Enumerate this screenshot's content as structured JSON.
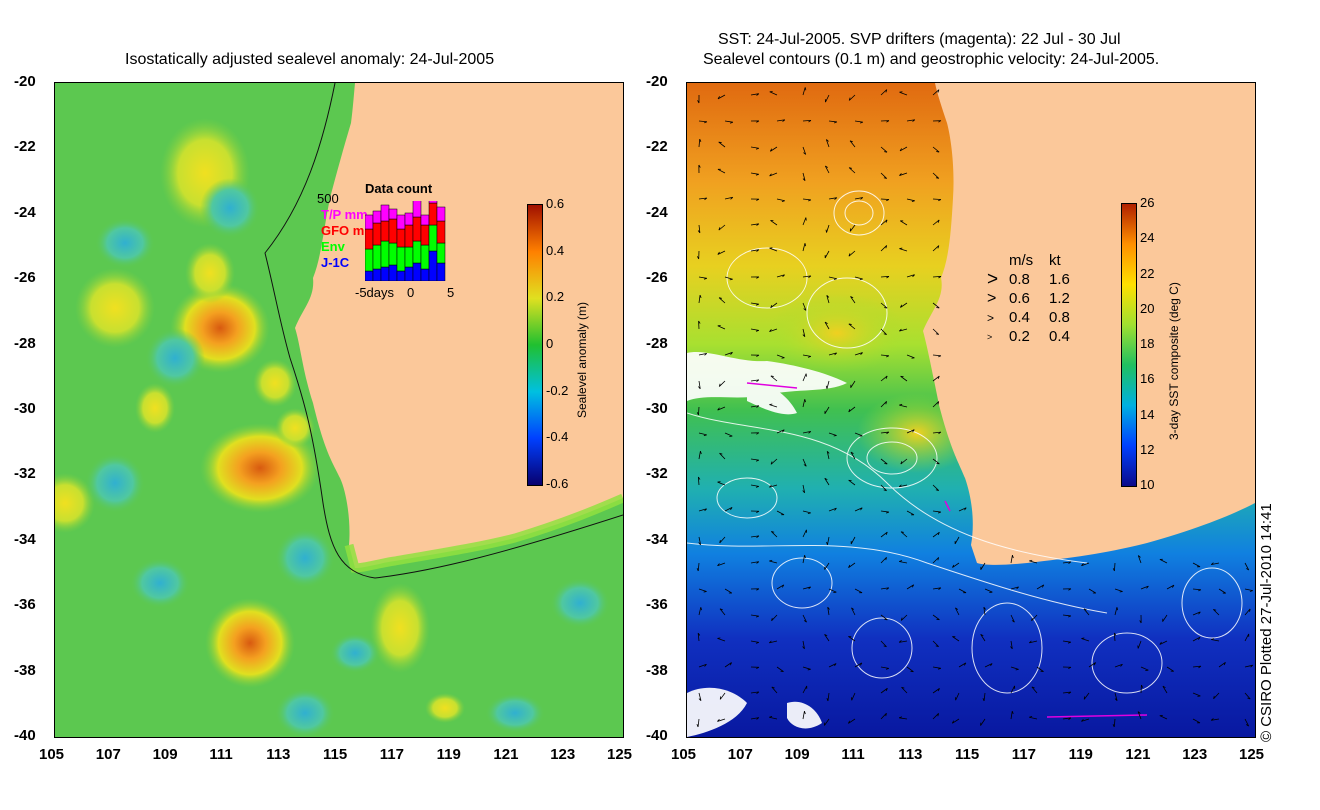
{
  "left_panel": {
    "title": "Isostatically adjusted sealevel anomaly: 24-Jul-2005",
    "colorbar": {
      "label": "Sealevel anomaly (m)",
      "ticks": [
        "0.6",
        "0.4",
        "0.2",
        "0",
        "-0.2",
        "-0.4",
        "-0.6"
      ],
      "colors": [
        "#08006e",
        "#0040ff",
        "#00c0e0",
        "#20c030",
        "#e0e020",
        "#ff8000",
        "#a01000"
      ]
    },
    "data_count": {
      "title": "Data count",
      "max_label": "500",
      "legend": [
        {
          "label": "T/P mm",
          "color": "#ff00ff"
        },
        {
          "label": "GFO mm",
          "color": "#ff0000"
        },
        {
          "label": "Env",
          "color": "#00ff00"
        },
        {
          "label": "J-1C",
          "color": "#0000ff"
        }
      ],
      "xaxis": {
        "left": "-5days",
        "mid": "0",
        "right": "5"
      }
    }
  },
  "right_panel": {
    "title_line1": "SST: 24-Jul-2005. SVP drifters (magenta): 22 Jul - 30 Jul",
    "title_line2": "Sealevel contours (0.1 m) and geostrophic velocity: 24-Jul-2005.",
    "colorbar": {
      "label": "3-day SST composite (deg C)",
      "ticks": [
        "26",
        "24",
        "22",
        "20",
        "18",
        "16",
        "14",
        "12",
        "10"
      ],
      "colors": [
        "#0a0a8a",
        "#0040ff",
        "#00b0e0",
        "#20c060",
        "#a0e030",
        "#ffe000",
        "#ff9000",
        "#b02000"
      ]
    },
    "velocity_legend": {
      "header_ms": "m/s",
      "header_kt": "kt",
      "rows": [
        {
          "ms": "0.8",
          "kt": "1.6"
        },
        {
          "ms": "0.6",
          "kt": "1.2"
        },
        {
          "ms": "0.4",
          "kt": "0.8"
        },
        {
          "ms": "0.2",
          "kt": "0.4"
        }
      ]
    }
  },
  "axes": {
    "lat_labels": [
      "-20",
      "-22",
      "-24",
      "-26",
      "-28",
      "-30",
      "-32",
      "-34",
      "-36",
      "-38",
      "-40"
    ],
    "lon_labels": [
      "105",
      "107",
      "109",
      "111",
      "113",
      "115",
      "117",
      "119",
      "121",
      "123",
      "125"
    ]
  },
  "copyright": "© CSIRO Plotted 27-Jul-2010 14:41",
  "colors": {
    "land": "#fbc89a",
    "ocean_left": "#5cc850",
    "sst_warm": "#e87818",
    "sst_cold": "#0818a0"
  }
}
